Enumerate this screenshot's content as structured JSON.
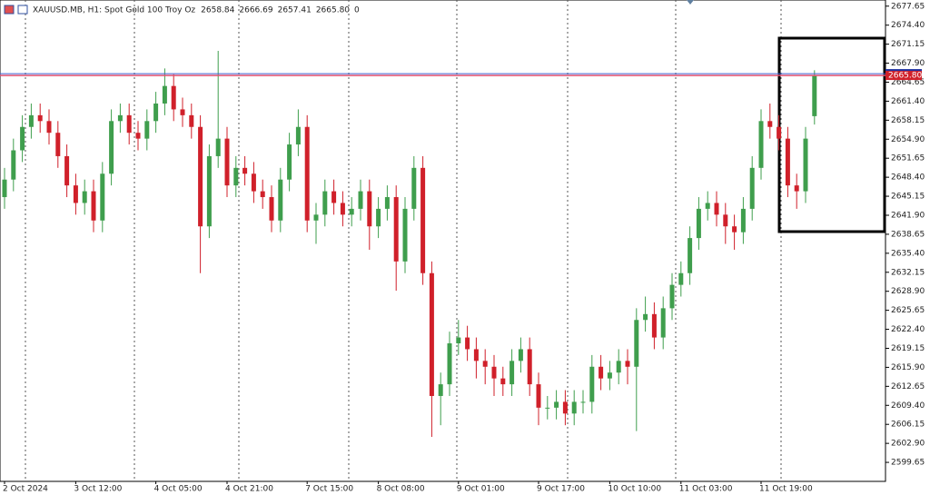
{
  "chart_data": {
    "type": "candlestick",
    "header": {
      "symbol": "XAUUSD.MB, H1:  Spot Gold 100 Troy Oz",
      "ohlc": [
        "2658.84",
        "2666.69",
        "2657.41",
        "2665.80"
      ],
      "volume": "0"
    },
    "up_color": "#3f9e4d",
    "down_color": "#d0202a",
    "current_price": {
      "value": 2665.8,
      "label": "2665.80"
    },
    "categories": [
      "2 Oct 2024",
      null,
      null,
      null,
      null,
      null,
      null,
      null,
      "3 Oct 12:00",
      null,
      null,
      null,
      null,
      null,
      null,
      null,
      null,
      "4 Oct 05:00",
      null,
      null,
      null,
      null,
      null,
      null,
      null,
      "4 Oct 21:00",
      null,
      null,
      null,
      null,
      null,
      null,
      null,
      null,
      "7 Oct 15:00",
      null,
      null,
      null,
      null,
      null,
      null,
      null,
      "8 Oct 08:00",
      null,
      null,
      null,
      null,
      null,
      null,
      null,
      null,
      "9 Oct 01:00",
      null,
      null,
      null,
      null,
      null,
      null,
      null,
      null,
      "9 Oct 17:00",
      null,
      null,
      null,
      null,
      null,
      null,
      null,
      "10 Oct 10:00",
      null,
      null,
      null,
      null,
      null,
      null,
      null,
      "11 Oct 03:00",
      null,
      null,
      null,
      null,
      null,
      null,
      null,
      null,
      "11 Oct 19:00",
      null,
      null,
      null,
      null,
      null,
      null
    ],
    "open": [
      2645,
      2648,
      2653,
      2657,
      2659,
      2658,
      2656,
      2652,
      2647,
      2644,
      2646,
      2641,
      2649,
      2658,
      2659,
      2656,
      2655,
      2658,
      2661,
      2664,
      2660,
      2659,
      2657,
      2640,
      2652,
      2655,
      2647,
      2650,
      2649,
      2646,
      2645,
      2641,
      2648,
      2654,
      2657,
      2641,
      2642,
      2646,
      2644,
      2642,
      2643,
      2646,
      2640,
      2643,
      2645,
      2634,
      2643,
      2650,
      2632,
      2611,
      2613,
      2620,
      2621,
      2619,
      2617,
      2616,
      2614,
      2613,
      2617,
      2619,
      2613,
      2609,
      2609,
      2610,
      2608,
      2610,
      2610,
      2616,
      2614,
      2615,
      2617,
      2616,
      2624,
      2625,
      2621,
      2626,
      2630,
      2632,
      2638,
      2643,
      2644,
      2642,
      2640,
      2639,
      2643,
      2650,
      2658,
      2657,
      2655,
      2647,
      2646,
      2658.84
    ],
    "high": [
      2650,
      2655,
      2659,
      2661,
      2661,
      2660,
      2658,
      2654,
      2649,
      2648,
      2648,
      2651,
      2660,
      2661,
      2661,
      2658,
      2660,
      2663,
      2667,
      2666,
      2662,
      2661,
      2659,
      2654,
      2670,
      2657,
      2652,
      2652,
      2651,
      2648,
      2647,
      2650,
      2656,
      2660,
      2659,
      2644,
      2648,
      2648,
      2646,
      2645,
      2648,
      2648,
      2645,
      2647,
      2647,
      2645,
      2652,
      2652,
      2634,
      2615,
      2622,
      2624,
      2623,
      2621,
      2619,
      2618,
      2616,
      2619,
      2621,
      2621,
      2615,
      2611,
      2612,
      2612,
      2612,
      2612,
      2618,
      2618,
      2617,
      2619,
      2619,
      2626,
      2628,
      2627,
      2628,
      2632,
      2634,
      2640,
      2645,
      2646,
      2646,
      2644,
      2642,
      2645,
      2652,
      2660,
      2661,
      2659,
      2657,
      2649,
      2657,
      2666.69
    ],
    "low": [
      2643,
      2646,
      2651,
      2655,
      2656,
      2654,
      2650,
      2645,
      2642,
      2642,
      2639,
      2639,
      2647,
      2656,
      2654,
      2653,
      2653,
      2656,
      2659,
      2658,
      2657,
      2655,
      2632,
      2638,
      2650,
      2645,
      2645,
      2647,
      2644,
      2643,
      2639,
      2639,
      2646,
      2652,
      2639,
      2637,
      2640,
      2642,
      2640,
      2640,
      2641,
      2636,
      2638,
      2641,
      2629,
      2632,
      2641,
      2630,
      2604,
      2606,
      2611,
      2618,
      2617,
      2614,
      2613,
      2611,
      2611,
      2611,
      2615,
      2611,
      2606,
      2607,
      2607,
      2606,
      2606,
      2608,
      2608,
      2612,
      2612,
      2613,
      2613,
      2605,
      2622,
      2619,
      2619,
      2624,
      2628,
      2630,
      2636,
      2641,
      2640,
      2637,
      2636,
      2637,
      2641,
      2648,
      2655,
      2653,
      2645,
      2643,
      2644,
      2657.41
    ],
    "close": [
      2648,
      2653,
      2657,
      2659,
      2658,
      2656,
      2652,
      2647,
      2644,
      2646,
      2641,
      2649,
      2658,
      2659,
      2656,
      2655,
      2658,
      2661,
      2664,
      2660,
      2659,
      2657,
      2640,
      2652,
      2655,
      2647,
      2650,
      2649,
      2646,
      2645,
      2641,
      2648,
      2654,
      2657,
      2641,
      2642,
      2646,
      2644,
      2642,
      2643,
      2646,
      2640,
      2643,
      2645,
      2634,
      2643,
      2650,
      2632,
      2611,
      2613,
      2620,
      2621,
      2619,
      2617,
      2616,
      2614,
      2613,
      2617,
      2619,
      2613,
      2609,
      2609,
      2610,
      2608,
      2610,
      2610,
      2616,
      2614,
      2615,
      2617,
      2616,
      2624,
      2625,
      2621,
      2626,
      2630,
      2632,
      2638,
      2643,
      2644,
      2642,
      2640,
      2639,
      2643,
      2650,
      2658,
      2657,
      2655,
      2647,
      2646,
      2655,
      2665.8
    ],
    "ylim": [
      2596.4,
      2678.7
    ],
    "yticks": [
      2677.65,
      {
        "value": 2674.4,
        "label": "2674.40"
      },
      2671.15,
      {
        "value": 2667.9,
        "label": "2667.90"
      },
      2664.65,
      {
        "value": 2661.4,
        "label": "2661.40"
      },
      2658.15,
      {
        "value": 2654.9,
        "label": "2654.90"
      },
      2651.65,
      {
        "value": 2648.4,
        "label": "2648.40"
      },
      2645.15,
      {
        "value": 2641.9,
        "label": "2641.90"
      },
      2638.65,
      {
        "value": 2635.4,
        "label": "2635.40"
      },
      2632.15,
      {
        "value": 2628.9,
        "label": "2628.90"
      },
      2625.65,
      {
        "value": 2622.4,
        "label": "2622.40"
      },
      2619.15,
      {
        "value": 2615.9,
        "label": "2615.90"
      },
      2612.65,
      {
        "value": 2609.4,
        "label": "2609.40"
      },
      2606.15,
      {
        "value": 2602.9,
        "label": "2602.90"
      },
      2599.65
    ]
  }
}
